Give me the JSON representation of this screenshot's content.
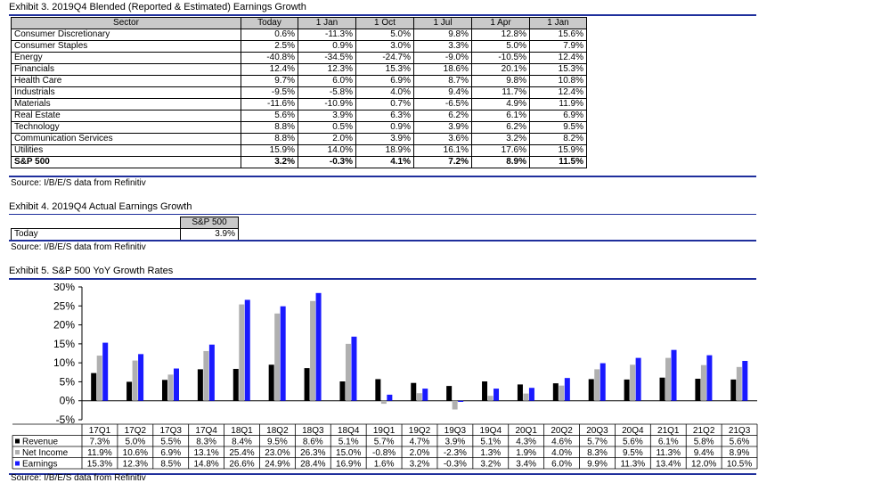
{
  "exhibit3": {
    "title": "Exhibit 3.  2019Q4 Blended (Reported & Estimated) Earnings Growth",
    "headers": [
      "Sector",
      "Today",
      "1 Jan",
      "1 Oct",
      "1 Jul",
      "1 Apr",
      "1 Jan"
    ],
    "rows": [
      [
        "Consumer Discretionary",
        "0.6%",
        "-11.3%",
        "5.0%",
        "9.8%",
        "12.8%",
        "15.6%"
      ],
      [
        "Consumer Staples",
        "2.5%",
        "0.9%",
        "3.0%",
        "3.3%",
        "5.0%",
        "7.9%"
      ],
      [
        "Energy",
        "-40.8%",
        "-34.5%",
        "-24.7%",
        "-9.0%",
        "-10.5%",
        "12.4%"
      ],
      [
        "Financials",
        "12.4%",
        "12.3%",
        "15.3%",
        "18.6%",
        "20.1%",
        "15.3%"
      ],
      [
        "Health Care",
        "9.7%",
        "6.0%",
        "6.9%",
        "8.7%",
        "9.8%",
        "10.8%"
      ],
      [
        "Industrials",
        "-9.5%",
        "-5.8%",
        "4.0%",
        "9.4%",
        "11.7%",
        "12.4%"
      ],
      [
        "Materials",
        "-11.6%",
        "-10.9%",
        "0.7%",
        "-6.5%",
        "4.9%",
        "11.9%"
      ],
      [
        "Real Estate",
        "5.6%",
        "3.9%",
        "6.3%",
        "6.2%",
        "6.1%",
        "6.9%"
      ],
      [
        "Technology",
        "8.8%",
        "0.5%",
        "0.9%",
        "3.9%",
        "6.2%",
        "9.5%"
      ],
      [
        "Communication Services",
        "8.8%",
        "2.0%",
        "3.9%",
        "3.6%",
        "3.2%",
        "8.2%"
      ],
      [
        "Utilities",
        "15.9%",
        "14.0%",
        "18.9%",
        "16.1%",
        "17.6%",
        "15.9%"
      ]
    ],
    "total": [
      "S&P 500",
      "3.2%",
      "-0.3%",
      "4.1%",
      "7.2%",
      "8.9%",
      "11.5%"
    ],
    "source": "Source: I/B/E/S data from Refinitiv"
  },
  "exhibit4": {
    "title": "Exhibit 4.  2019Q4 Actual Earnings Growth",
    "header": "S&P 500",
    "row_label": "Today",
    "row_value": "3.9%",
    "source": "Source: I/B/E/S data from Refinitiv"
  },
  "exhibit5": {
    "title": "Exhibit 5.  S&P 500 YoY Growth Rates",
    "source": "Source: I/B/E/S data from Refinitiv"
  },
  "colors": {
    "rule": "#1f2f9c",
    "revenue": "#000000",
    "net_income": "#b0b0b0",
    "earnings": "#1a1aff",
    "header_fill": "#c9c9c9"
  },
  "chart_data": {
    "type": "bar",
    "categories": [
      "17Q1",
      "17Q2",
      "17Q3",
      "17Q4",
      "18Q1",
      "18Q2",
      "18Q3",
      "18Q4",
      "19Q1",
      "19Q2",
      "19Q3",
      "19Q4",
      "20Q1",
      "20Q2",
      "20Q3",
      "20Q4",
      "21Q1",
      "21Q2",
      "21Q3"
    ],
    "series": [
      {
        "name": "Revenue",
        "values": [
          7.3,
          5.0,
          5.5,
          8.3,
          8.4,
          9.5,
          8.6,
          5.1,
          5.7,
          4.7,
          3.9,
          5.1,
          4.3,
          4.6,
          5.7,
          5.6,
          6.1,
          5.8,
          5.6
        ],
        "labels": [
          "7.3%",
          "5.0%",
          "5.5%",
          "8.3%",
          "8.4%",
          "9.5%",
          "8.6%",
          "5.1%",
          "5.7%",
          "4.7%",
          "3.9%",
          "5.1%",
          "4.3%",
          "4.6%",
          "5.7%",
          "5.6%",
          "6.1%",
          "5.8%",
          "5.6%"
        ]
      },
      {
        "name": "Net Income",
        "values": [
          11.9,
          10.6,
          6.9,
          13.1,
          25.4,
          23.0,
          26.3,
          15.0,
          -0.8,
          2.0,
          -2.3,
          1.3,
          1.9,
          4.0,
          8.3,
          9.5,
          11.3,
          9.4,
          8.9
        ],
        "labels": [
          "11.9%",
          "10.6%",
          "6.9%",
          "13.1%",
          "25.4%",
          "23.0%",
          "26.3%",
          "15.0%",
          "-0.8%",
          "2.0%",
          "-2.3%",
          "1.3%",
          "1.9%",
          "4.0%",
          "8.3%",
          "9.5%",
          "11.3%",
          "9.4%",
          "8.9%"
        ]
      },
      {
        "name": "Earnings",
        "values": [
          15.3,
          12.3,
          8.5,
          14.8,
          26.6,
          24.9,
          28.4,
          16.9,
          1.6,
          3.2,
          -0.3,
          3.2,
          3.4,
          6.0,
          9.9,
          11.3,
          13.4,
          12.0,
          10.5
        ],
        "labels": [
          "15.3%",
          "12.3%",
          "8.5%",
          "14.8%",
          "26.6%",
          "24.9%",
          "28.4%",
          "16.9%",
          "1.6%",
          "3.2%",
          "-0.3%",
          "3.2%",
          "3.4%",
          "6.0%",
          "9.9%",
          "11.3%",
          "13.4%",
          "12.0%",
          "10.5%"
        ]
      }
    ],
    "ylim": [
      -5,
      30
    ],
    "yticks": [
      -5,
      0,
      5,
      10,
      15,
      20,
      25,
      30
    ],
    "ytick_labels": [
      "-5%",
      "0%",
      "5%",
      "10%",
      "15%",
      "20%",
      "25%",
      "30%"
    ],
    "grid": false,
    "legend": "data table below chart"
  }
}
